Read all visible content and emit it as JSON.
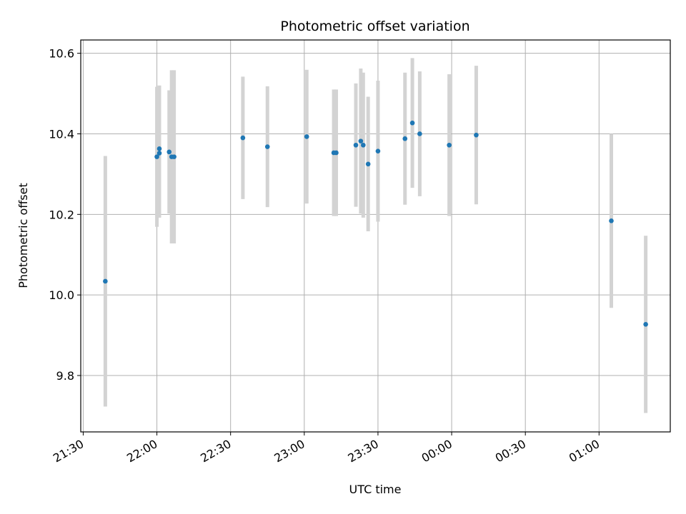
{
  "chart_data": {
    "type": "scatter",
    "title": "Photometric offset variation",
    "xlabel": "UTC time",
    "ylabel": "Photometric offset",
    "x_ticks": [
      "21:30",
      "22:00",
      "22:30",
      "23:00",
      "23:30",
      "00:00",
      "00:30",
      "01:00"
    ],
    "y_ticks": [
      "9.8",
      "10.0",
      "10.2",
      "10.4",
      "10.6"
    ],
    "xlim": [
      "21:29",
      "25:29"
    ],
    "ylim": [
      9.66,
      10.633
    ],
    "grid": true,
    "marker_color": "#1f77b4",
    "errorbar_color": "#d3d3d3",
    "points": [
      {
        "x": "21:39",
        "y": 10.034,
        "err": 0.311
      },
      {
        "x": "22:00",
        "y": 10.343,
        "err": 0.174
      },
      {
        "x": "22:01",
        "y": 10.363,
        "err": 0.157
      },
      {
        "x": "22:01",
        "y": 10.352,
        "err": 0.16
      },
      {
        "x": "22:05",
        "y": 10.355,
        "err": 0.153
      },
      {
        "x": "22:06",
        "y": 10.343,
        "err": 0.215
      },
      {
        "x": "22:07",
        "y": 10.343,
        "err": 0.215
      },
      {
        "x": "22:35",
        "y": 10.39,
        "err": 0.152
      },
      {
        "x": "22:45",
        "y": 10.368,
        "err": 0.15
      },
      {
        "x": "23:01",
        "y": 10.393,
        "err": 0.166
      },
      {
        "x": "23:12",
        "y": 10.353,
        "err": 0.157
      },
      {
        "x": "23:13",
        "y": 10.353,
        "err": 0.157
      },
      {
        "x": "23:21",
        "y": 10.372,
        "err": 0.153
      },
      {
        "x": "23:23",
        "y": 10.382,
        "err": 0.18
      },
      {
        "x": "23:24",
        "y": 10.372,
        "err": 0.18
      },
      {
        "x": "23:26",
        "y": 10.325,
        "err": 0.167
      },
      {
        "x": "23:30",
        "y": 10.357,
        "err": 0.175
      },
      {
        "x": "23:41",
        "y": 10.388,
        "err": 0.164
      },
      {
        "x": "23:44",
        "y": 10.427,
        "err": 0.161
      },
      {
        "x": "23:47",
        "y": 10.4,
        "err": 0.155
      },
      {
        "x": "23:59",
        "y": 10.372,
        "err": 0.176
      },
      {
        "x": "24:10",
        "y": 10.397,
        "err": 0.172
      },
      {
        "x": "25:05",
        "y": 10.184,
        "err": 0.216
      },
      {
        "x": "25:19",
        "y": 9.927,
        "err": 0.22
      }
    ]
  }
}
